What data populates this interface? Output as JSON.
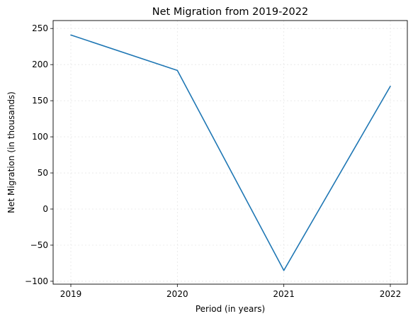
{
  "chart_data": {
    "type": "line",
    "title": "Net Migration from 2019-2022",
    "xlabel": "Period (in years)",
    "ylabel": "Net Migration (in thousands)",
    "categories": [
      "2019",
      "2020",
      "2021",
      "2022"
    ],
    "series": [
      {
        "values": [
          241,
          192,
          -85,
          170
        ],
        "color": "#1f77b4"
      }
    ],
    "ylim": [
      -104,
      261
    ],
    "yticks": [
      -100,
      -50,
      0,
      50,
      100,
      150,
      200,
      250
    ],
    "ytick_labels": [
      "−100",
      "−50",
      "0",
      "50",
      "100",
      "150",
      "200",
      "250"
    ],
    "grid": true
  }
}
